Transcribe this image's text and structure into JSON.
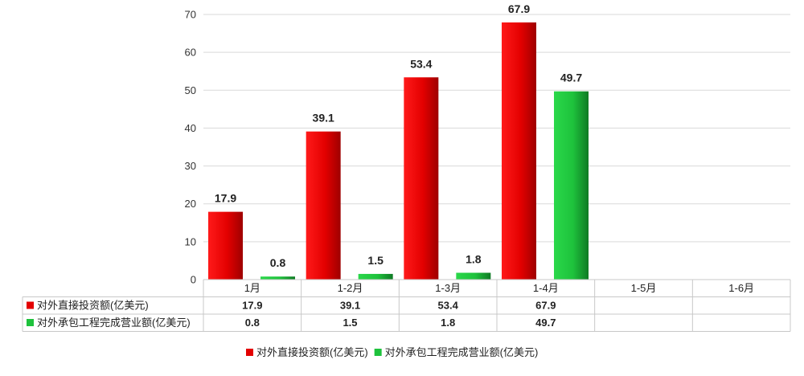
{
  "chart_data": {
    "type": "bar",
    "categories": [
      "1月",
      "1-2月",
      "1-3月",
      "1-4月",
      "1-5月",
      "1-6月"
    ],
    "series": [
      {
        "name": "对外直接投资额(亿美元)",
        "values": [
          17.9,
          39.1,
          53.4,
          67.9,
          null,
          null
        ],
        "labels": [
          "17.9",
          "39.1",
          "53.4",
          "67.9",
          "",
          ""
        ]
      },
      {
        "name": "对外承包工程完成营业额(亿美元)",
        "values": [
          0.8,
          1.5,
          1.8,
          49.7,
          null,
          null
        ],
        "labels": [
          "0.8",
          "1.5",
          "1.8",
          "49.7",
          "",
          ""
        ]
      }
    ],
    "y_ticks": [
      "0",
      "10",
      "20",
      "30",
      "40",
      "50",
      "60",
      "70"
    ],
    "ylim": [
      0,
      70
    ],
    "grid": true,
    "legend_position": "bottom",
    "data_table": true,
    "colors": {
      "series_0": "#e30000",
      "series_0_dark": "#9e0000",
      "series_1": "#1ec23c",
      "series_1_dark": "#0f7a24",
      "grid": "#d9d9d9",
      "table_border": "#c8c8c8"
    }
  }
}
